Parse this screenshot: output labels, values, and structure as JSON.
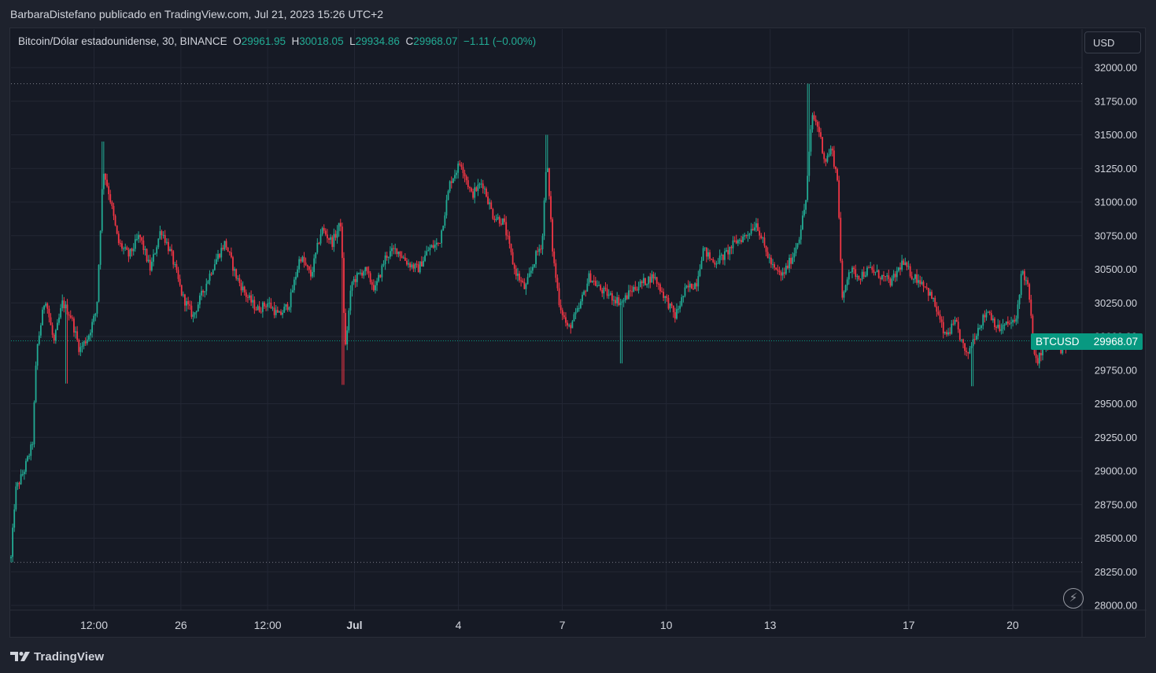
{
  "header": {
    "text": "BarbaraDistefano publicado en TradingView.com, Jul 21, 2023 15:26 UTC+2"
  },
  "legend": {
    "title": "Bitcoin/Dólar estadounidense, 30, BINANCE",
    "o_label": "O",
    "o_value": "29961.95",
    "h_label": "H",
    "h_value": "30018.05",
    "l_label": "L",
    "l_value": "29934.86",
    "c_label": "C",
    "c_value": "29968.07",
    "change": "−1.11 (−0.00%)"
  },
  "currency_button": "USD",
  "price_tag": {
    "symbol": "BTCUSD",
    "price": "29968.07"
  },
  "footer": {
    "brand": "TradingView"
  },
  "colors": {
    "up": "#22ab94",
    "down": "#f23645",
    "background": "#161a25",
    "grid": "#232734",
    "accent": "#089981"
  },
  "chart_data": {
    "type": "candlestick",
    "symbol": "BTCUSD",
    "interval": "30",
    "exchange": "BINANCE",
    "ylim": [
      28000,
      32000
    ],
    "y_ticks": [
      32000,
      31750,
      31500,
      31250,
      31000,
      30750,
      30500,
      30250,
      30000,
      29750,
      29500,
      29250,
      29000,
      28750,
      28500,
      28250,
      28000
    ],
    "x_ticks": [
      {
        "label": "12:00",
        "bold": false,
        "t": 0.0775
      },
      {
        "label": "26",
        "bold": false,
        "t": 0.1586
      },
      {
        "label": "12:00",
        "bold": false,
        "t": 0.2396
      },
      {
        "label": "Jul",
        "bold": true,
        "t": 0.3207
      },
      {
        "label": "4",
        "bold": false,
        "t": 0.4177
      },
      {
        "label": "7",
        "bold": false,
        "t": 0.5147
      },
      {
        "label": "10",
        "bold": false,
        "t": 0.6118
      },
      {
        "label": "13",
        "bold": false,
        "t": 0.7088
      },
      {
        "label": "17",
        "bold": false,
        "t": 0.8382
      },
      {
        "label": "20",
        "bold": false,
        "t": 0.9353
      }
    ],
    "high_line": 31880,
    "low_line": 28320,
    "last_price": 29968.07,
    "close_path": [
      [
        0.0,
        28350
      ],
      [
        0.004,
        28850
      ],
      [
        0.012,
        29000
      ],
      [
        0.02,
        29200
      ],
      [
        0.024,
        29900
      ],
      [
        0.032,
        30300
      ],
      [
        0.04,
        29950
      ],
      [
        0.048,
        30250
      ],
      [
        0.056,
        30150
      ],
      [
        0.064,
        29900
      ],
      [
        0.072,
        30000
      ],
      [
        0.08,
        30200
      ],
      [
        0.086,
        31250
      ],
      [
        0.092,
        31050
      ],
      [
        0.1,
        30700
      ],
      [
        0.11,
        30600
      ],
      [
        0.12,
        30750
      ],
      [
        0.13,
        30500
      ],
      [
        0.14,
        30800
      ],
      [
        0.15,
        30600
      ],
      [
        0.16,
        30300
      ],
      [
        0.17,
        30150
      ],
      [
        0.18,
        30350
      ],
      [
        0.19,
        30550
      ],
      [
        0.2,
        30700
      ],
      [
        0.21,
        30450
      ],
      [
        0.22,
        30300
      ],
      [
        0.23,
        30200
      ],
      [
        0.24,
        30250
      ],
      [
        0.25,
        30150
      ],
      [
        0.26,
        30250
      ],
      [
        0.27,
        30600
      ],
      [
        0.28,
        30450
      ],
      [
        0.29,
        30800
      ],
      [
        0.3,
        30700
      ],
      [
        0.308,
        30850
      ],
      [
        0.312,
        29900
      ],
      [
        0.318,
        30400
      ],
      [
        0.33,
        30500
      ],
      [
        0.34,
        30350
      ],
      [
        0.35,
        30600
      ],
      [
        0.36,
        30650
      ],
      [
        0.37,
        30550
      ],
      [
        0.38,
        30500
      ],
      [
        0.39,
        30650
      ],
      [
        0.4,
        30700
      ],
      [
        0.41,
        31150
      ],
      [
        0.42,
        31300
      ],
      [
        0.43,
        31050
      ],
      [
        0.44,
        31150
      ],
      [
        0.45,
        30900
      ],
      [
        0.46,
        30850
      ],
      [
        0.47,
        30500
      ],
      [
        0.48,
        30350
      ],
      [
        0.49,
        30600
      ],
      [
        0.496,
        30700
      ],
      [
        0.5,
        31350
      ],
      [
        0.506,
        30600
      ],
      [
        0.512,
        30250
      ],
      [
        0.52,
        30050
      ],
      [
        0.53,
        30200
      ],
      [
        0.54,
        30450
      ],
      [
        0.55,
        30350
      ],
      [
        0.56,
        30300
      ],
      [
        0.57,
        30250
      ],
      [
        0.58,
        30350
      ],
      [
        0.59,
        30400
      ],
      [
        0.6,
        30450
      ],
      [
        0.61,
        30300
      ],
      [
        0.62,
        30150
      ],
      [
        0.63,
        30350
      ],
      [
        0.64,
        30400
      ],
      [
        0.646,
        30650
      ],
      [
        0.656,
        30550
      ],
      [
        0.666,
        30600
      ],
      [
        0.676,
        30700
      ],
      [
        0.686,
        30750
      ],
      [
        0.696,
        30850
      ],
      [
        0.704,
        30650
      ],
      [
        0.712,
        30500
      ],
      [
        0.72,
        30450
      ],
      [
        0.73,
        30600
      ],
      [
        0.736,
        30750
      ],
      [
        0.742,
        31000
      ],
      [
        0.748,
        31650
      ],
      [
        0.754,
        31550
      ],
      [
        0.76,
        31300
      ],
      [
        0.766,
        31400
      ],
      [
        0.772,
        31150
      ],
      [
        0.776,
        30250
      ],
      [
        0.782,
        30500
      ],
      [
        0.792,
        30450
      ],
      [
        0.802,
        30500
      ],
      [
        0.812,
        30450
      ],
      [
        0.822,
        30400
      ],
      [
        0.832,
        30550
      ],
      [
        0.842,
        30450
      ],
      [
        0.852,
        30400
      ],
      [
        0.862,
        30250
      ],
      [
        0.872,
        30000
      ],
      [
        0.882,
        30100
      ],
      [
        0.892,
        29850
      ],
      [
        0.902,
        30050
      ],
      [
        0.912,
        30200
      ],
      [
        0.922,
        30050
      ],
      [
        0.932,
        30100
      ],
      [
        0.938,
        30100
      ],
      [
        0.944,
        30500
      ],
      [
        0.95,
        30350
      ],
      [
        0.956,
        29800
      ],
      [
        0.964,
        29900
      ],
      [
        0.972,
        29950
      ],
      [
        0.98,
        29900
      ],
      [
        0.988,
        29968
      ]
    ],
    "wick_extremes": [
      {
        "t": 0.744,
        "high": 31880
      },
      {
        "t": 0.5,
        "high": 31500
      },
      {
        "t": 0.086,
        "high": 31450
      },
      {
        "t": 0.57,
        "low": 29800
      },
      {
        "t": 0.31,
        "low": 29640
      },
      {
        "t": 0.052,
        "low": 29650
      },
      {
        "t": 0.898,
        "low": 29630
      },
      {
        "t": 0.0,
        "low": 28320
      }
    ]
  }
}
